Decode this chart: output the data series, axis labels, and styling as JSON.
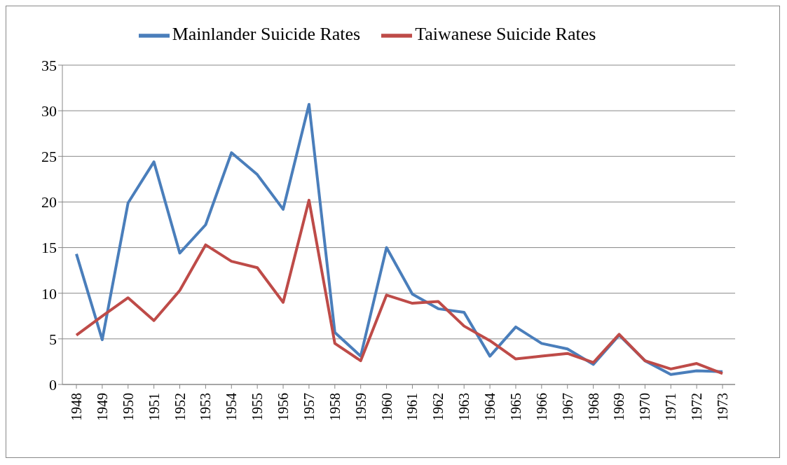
{
  "chart_data": {
    "type": "line",
    "categories": [
      "1948",
      "1949",
      "1950",
      "1951",
      "1952",
      "1953",
      "1954",
      "1955",
      "1956",
      "1957",
      "1958",
      "1959",
      "1960",
      "1961",
      "1962",
      "1963",
      "1964",
      "1965",
      "1966",
      "1967",
      "1968",
      "1969",
      "1970",
      "1971",
      "1972",
      "1973"
    ],
    "series": [
      {
        "name": "Mainlander Suicide Rates",
        "color": "#4a7ebb",
        "values": [
          14.3,
          4.9,
          19.9,
          24.4,
          14.4,
          17.5,
          25.4,
          23.0,
          19.2,
          30.7,
          5.7,
          3.1,
          15.0,
          9.9,
          8.3,
          7.9,
          3.1,
          6.3,
          4.5,
          3.9,
          2.2,
          5.4,
          2.6,
          1.1,
          1.5,
          1.4
        ]
      },
      {
        "name": "Taiwanese Suicide Rates",
        "color": "#be4b48",
        "values": [
          5.4,
          7.5,
          9.5,
          7.0,
          10.3,
          15.3,
          13.5,
          12.8,
          9.0,
          20.2,
          4.5,
          2.6,
          9.8,
          8.9,
          9.1,
          6.4,
          4.8,
          2.8,
          3.1,
          3.4,
          2.4,
          5.5,
          2.6,
          1.7,
          2.3,
          1.2
        ]
      }
    ],
    "ylim": [
      0,
      35
    ],
    "yticks": [
      0,
      5,
      10,
      15,
      20,
      25,
      30,
      35
    ],
    "grid": "y",
    "legend": "top",
    "marker": "none",
    "line_style": "solid"
  }
}
